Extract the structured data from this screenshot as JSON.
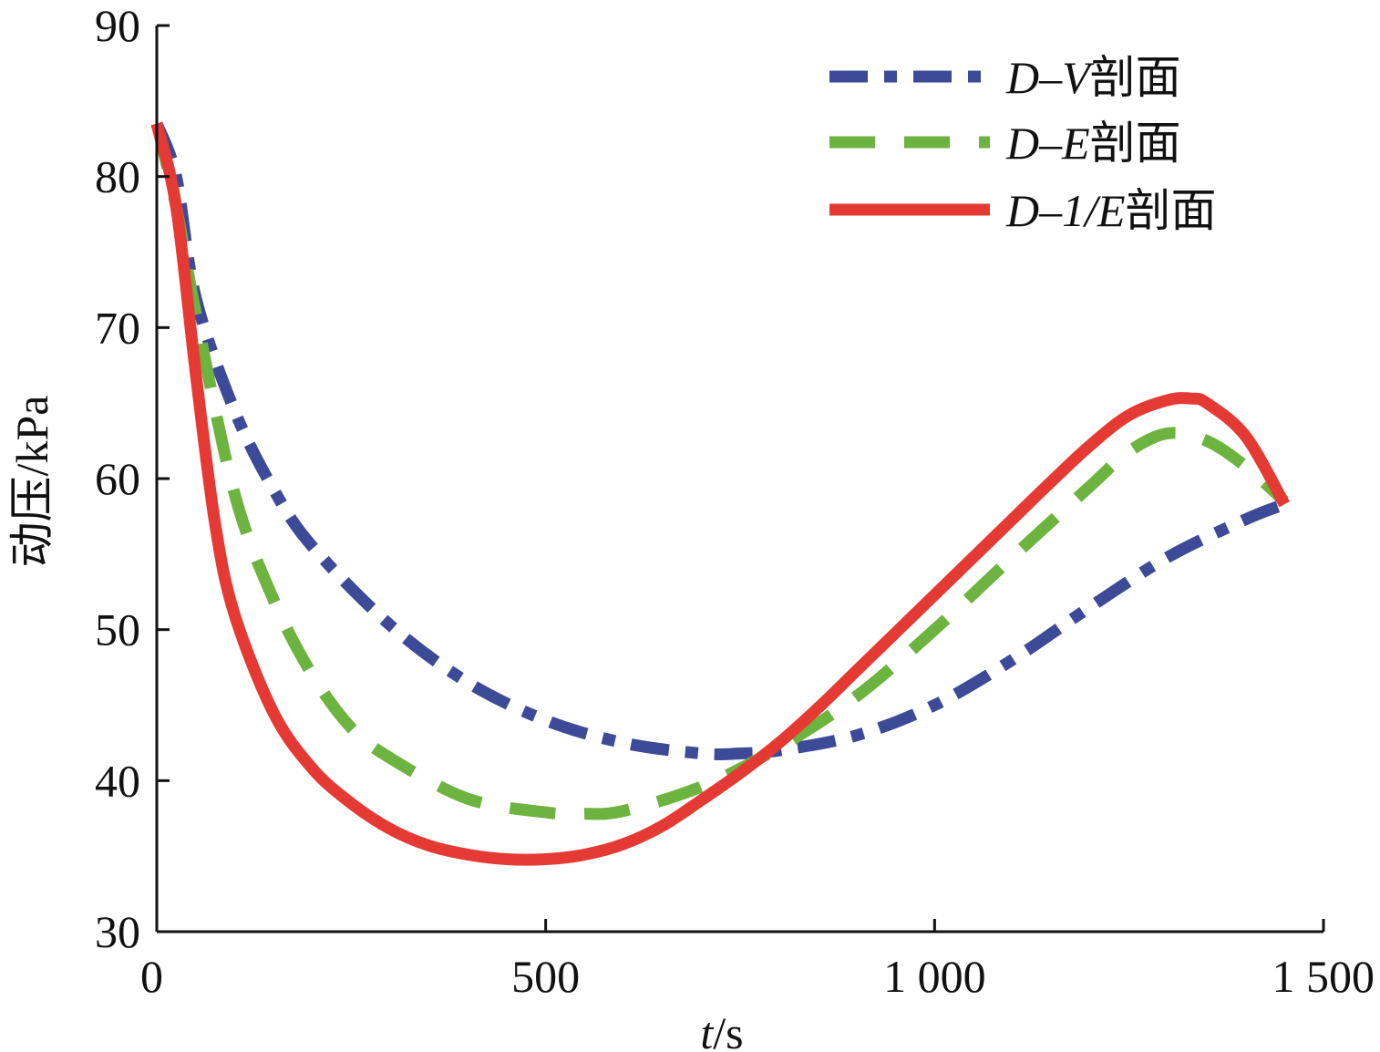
{
  "chart_data": {
    "type": "line",
    "xlabel": "t/s",
    "ylabel": "动压/kPa",
    "xlim": [
      0,
      1500
    ],
    "ylim": [
      30,
      90
    ],
    "xticks": [
      0,
      500,
      1000,
      1500
    ],
    "xtick_labels": [
      "0",
      "500",
      "1 000",
      "1 500"
    ],
    "yticks": [
      30,
      40,
      50,
      60,
      70,
      80,
      90
    ],
    "ytick_labels": [
      "30",
      "40",
      "50",
      "60",
      "70",
      "80",
      "90"
    ],
    "grid": false,
    "legend_position": "top-right",
    "series": [
      {
        "name": "D–V剖面",
        "color": "#3c4a97",
        "line_style": "dash-dot",
        "x": [
          0,
          25,
          50,
          100,
          150,
          200,
          300,
          400,
          500,
          600,
          700,
          750,
          800,
          900,
          1000,
          1100,
          1200,
          1300,
          1400,
          1450
        ],
        "y": [
          83.5,
          80,
          72,
          64.5,
          59.3,
          55.5,
          50.3,
          46.5,
          44,
          42.5,
          41.8,
          41.8,
          42,
          43,
          45,
          48,
          51.5,
          54.8,
          57.3,
          58.3
        ]
      },
      {
        "name": "D–E剖面",
        "color": "#6cb33f",
        "line_style": "dash",
        "x": [
          0,
          25,
          50,
          100,
          150,
          200,
          250,
          300,
          400,
          500,
          550,
          600,
          700,
          800,
          900,
          1000,
          1100,
          1200,
          1250,
          1300,
          1350,
          1400,
          1450
        ],
        "y": [
          83.5,
          78,
          71,
          59,
          52,
          47,
          43.5,
          41.5,
          38.8,
          37.9,
          37.8,
          38,
          39.6,
          42.2,
          45.6,
          50,
          54.8,
          59.5,
          61.8,
          63,
          62.5,
          60.8,
          58.5
        ]
      },
      {
        "name": "D–1/E剖面",
        "color": "#e53a33",
        "line_style": "solid",
        "x": [
          0,
          25,
          50,
          75,
          100,
          150,
          200,
          250,
          300,
          350,
          400,
          450,
          500,
          550,
          600,
          650,
          700,
          750,
          800,
          850,
          900,
          950,
          1000,
          1050,
          1100,
          1150,
          1200,
          1250,
          1300,
          1330,
          1350,
          1400,
          1450
        ],
        "y": [
          83.5,
          78,
          67,
          57,
          51,
          44.5,
          40.8,
          38.5,
          36.8,
          35.7,
          35.1,
          34.8,
          34.8,
          35.1,
          35.8,
          37,
          38.7,
          40.5,
          42.5,
          44.8,
          47.3,
          49.8,
          52.3,
          54.8,
          57.3,
          59.8,
          62.2,
          64.2,
          65.2,
          65.3,
          65,
          62.8,
          58.3
        ]
      }
    ]
  }
}
